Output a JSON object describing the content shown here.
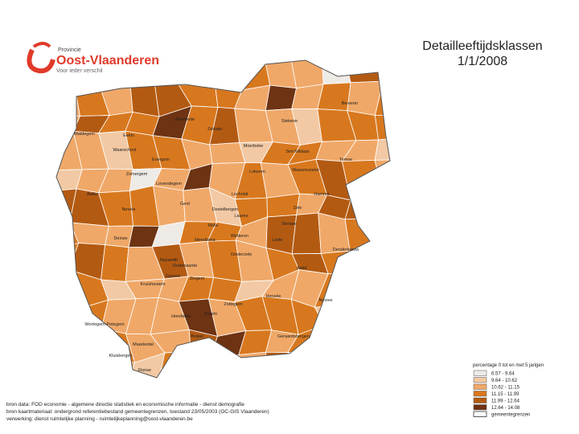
{
  "header": {
    "logo_top": "Provincie",
    "logo_name": "Oost-Vlaanderen",
    "logo_tagline": "Voor ieder verschil",
    "title": "Detailleeftijdsklassen",
    "subtitle": "1/1/2008"
  },
  "legend": {
    "title": "percentage 0 tot en met 5 jarigen",
    "items": [
      {
        "label": "6.57 - 9.64",
        "color": "#eeeae6"
      },
      {
        "label": "9.64 - 10.62",
        "color": "#f2c9a4"
      },
      {
        "label": "10.62 - 11.15",
        "color": "#f0a868"
      },
      {
        "label": "11.15 - 11.99",
        "color": "#d8781e"
      },
      {
        "label": "11.99 - 12.64",
        "color": "#b35a12"
      },
      {
        "label": "12.64 - 14.08",
        "color": "#6e3312"
      }
    ],
    "boundary": "gemeentegrenzen"
  },
  "municipalities": [
    "Maldegem",
    "Eeklo",
    "Assenede",
    "Zelzate",
    "Waarschoot",
    "Zomergem",
    "Aalter",
    "Nevele",
    "Deinze",
    "Gent",
    "Lochristi",
    "Lokeren",
    "Moerbeke",
    "Stekene",
    "Sint-Niklaas",
    "Beveren",
    "Temse",
    "Waasmunster",
    "Hamme",
    "Zele",
    "Berlare",
    "Wetteren",
    "Lede",
    "Aalst",
    "Denderleeuw",
    "Oosterzele",
    "Zottegem",
    "Herzele",
    "Ninove",
    "Geraardsbergen",
    "Brakel",
    "Oudenaarde",
    "Kruishoutem",
    "Zingem",
    "Ronse",
    "Maarkedal",
    "Kluisbergen",
    "Wortegem-Petegem",
    "Evergem",
    "Merelbeke",
    "Melle",
    "Destelbergen",
    "Laarne",
    "Nazareth",
    "Gavere",
    "Zwalm",
    "Horebeke",
    "Lovendegem"
  ],
  "sources": [
    "bron data: FOD economie - algemene directie statistiek en economische informatie - dienst demografie",
    "bron kaartmateriaal: ondergrond referentiebestand gemeentegrenzen, toestand 23/05/2003 (OC-GIS Vlaanderen)",
    "verwerking: dienst ruimtelijke planning - ruimtelijkeplanning@oost-vlaanderen.be"
  ]
}
